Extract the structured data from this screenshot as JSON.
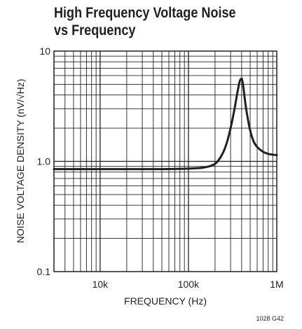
{
  "title_lines": [
    "High Frequency Voltage Noise",
    "vs Frequency"
  ],
  "chart_data": {
    "type": "line",
    "title": "High Frequency Voltage Noise vs Frequency",
    "xlabel": "FREQUENCY (Hz)",
    "ylabel": "NOISE VOLTAGE DENSITY (nV/√Hz)",
    "xscale": "log",
    "yscale": "log",
    "xlim": [
      3000,
      1000000
    ],
    "ylim": [
      0.1,
      10
    ],
    "grid": true,
    "x_ticks": [
      {
        "value": 10000,
        "label": "10k"
      },
      {
        "value": 100000,
        "label": "100k"
      },
      {
        "value": 1000000,
        "label": "1M"
      }
    ],
    "y_ticks": [
      {
        "value": 10,
        "label": "10"
      },
      {
        "value": 1,
        "label": "1.0"
      },
      {
        "value": 0.1,
        "label": "0.1"
      }
    ],
    "series": [
      {
        "x": [
          3000,
          10000,
          50000,
          100000,
          150000,
          200000,
          240000,
          270000,
          300000,
          330000,
          360000,
          380000,
          395000,
          405000,
          420000,
          450000,
          500000,
          550000,
          600000,
          700000,
          800000,
          900000,
          1000000
        ],
        "y": [
          0.85,
          0.85,
          0.85,
          0.86,
          0.88,
          0.95,
          1.15,
          1.45,
          2.0,
          2.9,
          4.3,
          5.3,
          5.6,
          5.5,
          4.6,
          3.0,
          1.9,
          1.5,
          1.35,
          1.22,
          1.17,
          1.15,
          1.14
        ]
      }
    ],
    "figure_code": "1028 G42"
  }
}
